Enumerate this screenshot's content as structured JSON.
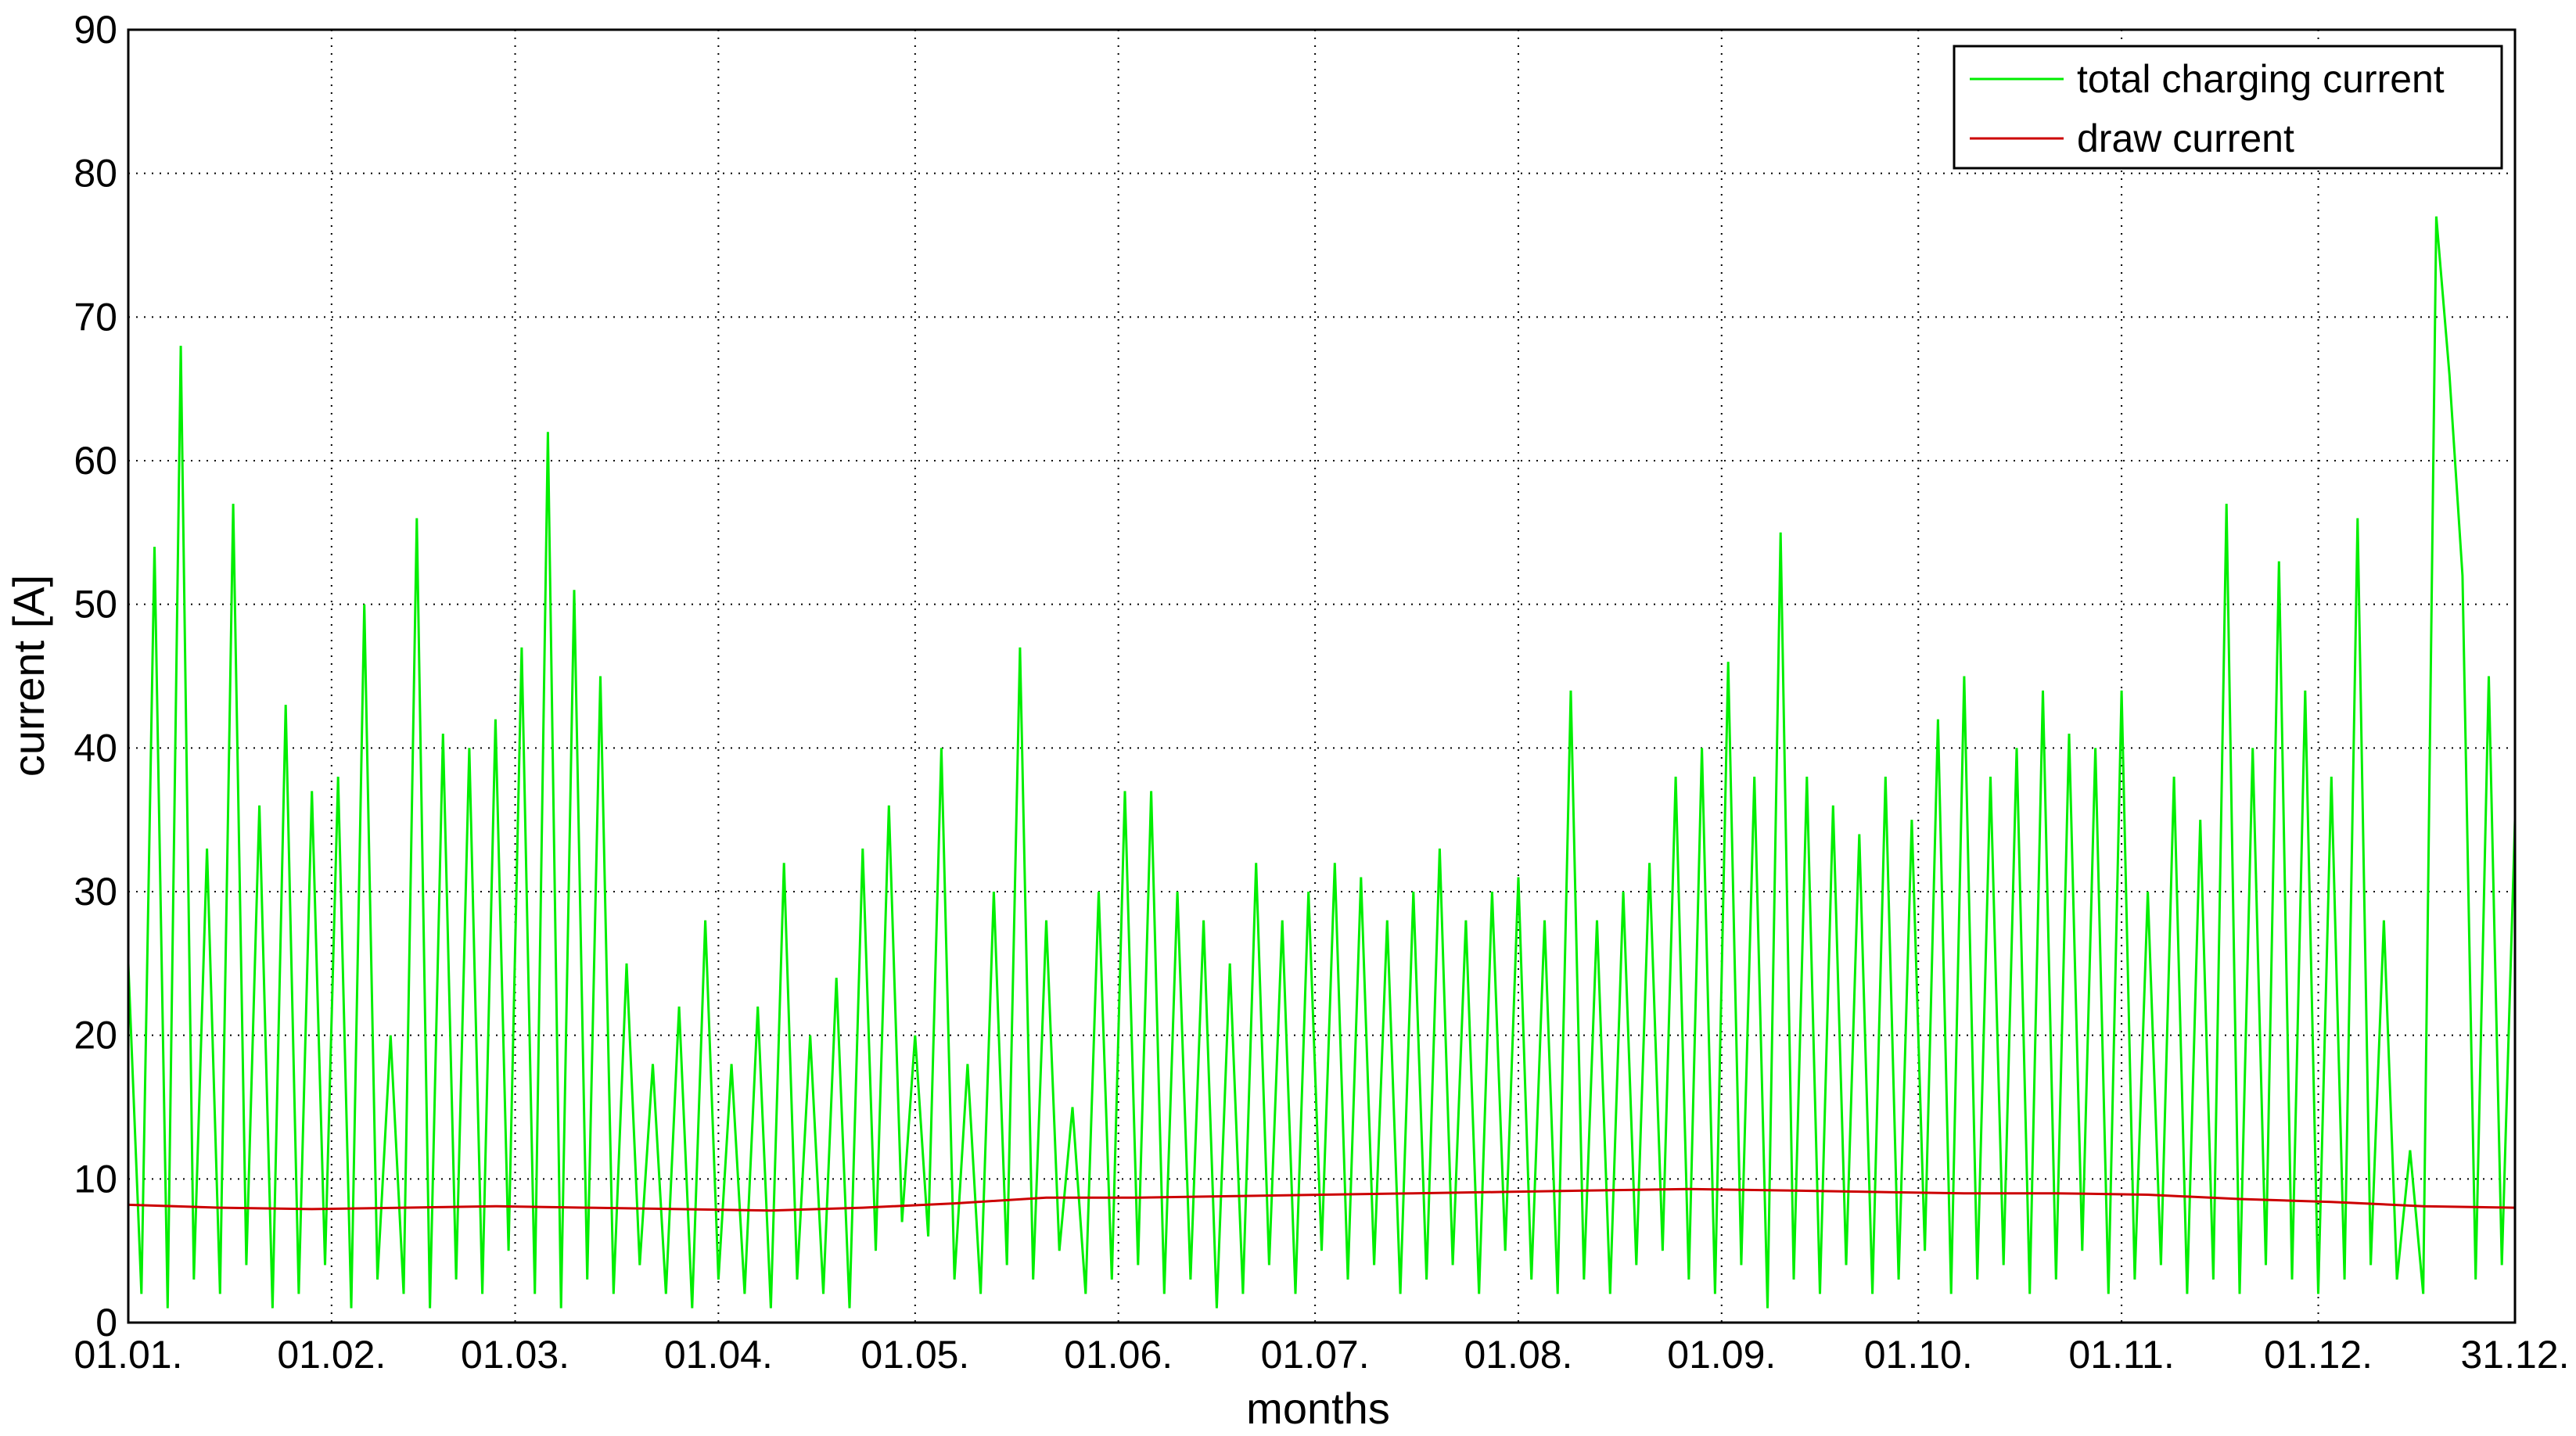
{
  "chart_data": {
    "type": "line",
    "xlabel": "months",
    "ylabel": "current [A]",
    "xlim": [
      0,
      364
    ],
    "xticks": [
      {
        "value": 0,
        "label": "01.01."
      },
      {
        "value": 31,
        "label": "01.02."
      },
      {
        "value": 59,
        "label": "01.03."
      },
      {
        "value": 90,
        "label": "01.04."
      },
      {
        "value": 120,
        "label": "01.05."
      },
      {
        "value": 151,
        "label": "01.06."
      },
      {
        "value": 181,
        "label": "01.07."
      },
      {
        "value": 212,
        "label": "01.08."
      },
      {
        "value": 243,
        "label": "01.09."
      },
      {
        "value": 273,
        "label": "01.10."
      },
      {
        "value": 304,
        "label": "01.11."
      },
      {
        "value": 334,
        "label": "01.12."
      },
      {
        "value": 364,
        "label": "31.12."
      }
    ],
    "ylim": [
      0,
      90
    ],
    "yticks": [
      0,
      10,
      20,
      30,
      40,
      50,
      60,
      70,
      80,
      90
    ],
    "grid": true,
    "legend": "upper right",
    "series": [
      {
        "name": "total charging current",
        "color": "#00ee00",
        "x": [
          0,
          2,
          4,
          6,
          8,
          10,
          12,
          14,
          16,
          18,
          20,
          22,
          24,
          26,
          28,
          30,
          32,
          34,
          36,
          38,
          40,
          42,
          44,
          46,
          48,
          50,
          52,
          54,
          56,
          58,
          60,
          62,
          64,
          66,
          68,
          70,
          72,
          74,
          76,
          78,
          80,
          82,
          84,
          86,
          88,
          90,
          92,
          94,
          96,
          98,
          100,
          102,
          104,
          106,
          108,
          110,
          112,
          114,
          116,
          118,
          120,
          122,
          124,
          126,
          128,
          130,
          132,
          134,
          136,
          138,
          140,
          142,
          144,
          146,
          148,
          150,
          152,
          154,
          156,
          158,
          160,
          162,
          164,
          166,
          168,
          170,
          172,
          174,
          176,
          178,
          180,
          182,
          184,
          186,
          188,
          190,
          192,
          194,
          196,
          198,
          200,
          202,
          204,
          206,
          208,
          210,
          212,
          214,
          216,
          218,
          220,
          222,
          224,
          226,
          228,
          230,
          232,
          234,
          236,
          238,
          240,
          242,
          244,
          246,
          248,
          250,
          252,
          254,
          256,
          258,
          260,
          262,
          264,
          266,
          268,
          270,
          272,
          274,
          276,
          278,
          280,
          282,
          284,
          286,
          288,
          290,
          292,
          294,
          296,
          298,
          300,
          302,
          304,
          306,
          308,
          310,
          312,
          314,
          316,
          318,
          320,
          322,
          324,
          326,
          328,
          330,
          332,
          334,
          336,
          338,
          340,
          342,
          344,
          346,
          348,
          350,
          352,
          354,
          356,
          358,
          360,
          362,
          364
        ],
        "values": [
          25,
          2,
          54,
          1,
          68,
          3,
          33,
          2,
          57,
          4,
          36,
          1,
          43,
          2,
          37,
          4,
          38,
          1,
          50,
          3,
          20,
          2,
          56,
          1,
          41,
          3,
          40,
          2,
          42,
          5,
          47,
          2,
          62,
          1,
          51,
          3,
          45,
          2,
          25,
          4,
          18,
          2,
          22,
          1,
          28,
          3,
          18,
          2,
          22,
          1,
          32,
          3,
          20,
          2,
          24,
          1,
          33,
          5,
          36,
          7,
          20,
          6,
          40,
          3,
          18,
          2,
          30,
          4,
          47,
          3,
          28,
          5,
          15,
          2,
          30,
          3,
          37,
          4,
          37,
          2,
          30,
          3,
          28,
          1,
          25,
          2,
          32,
          4,
          28,
          2,
          30,
          5,
          32,
          3,
          31,
          4,
          28,
          2,
          30,
          3,
          33,
          4,
          28,
          2,
          30,
          5,
          31,
          3,
          28,
          2,
          44,
          3,
          28,
          2,
          30,
          4,
          32,
          5,
          38,
          3,
          40,
          2,
          46,
          4,
          38,
          1,
          55,
          3,
          38,
          2,
          36,
          4,
          34,
          2,
          38,
          3,
          35,
          5,
          42,
          2,
          45,
          3,
          38,
          4,
          40,
          2,
          44,
          3,
          41,
          5,
          40,
          2,
          44,
          3,
          30,
          4,
          38,
          2,
          35,
          3,
          57,
          2,
          40,
          4,
          53,
          3,
          44,
          2,
          38,
          3,
          56,
          4,
          28,
          3,
          12,
          2,
          77,
          66,
          52,
          3,
          45,
          4,
          35
        ]
      },
      {
        "name": "draw current",
        "color": "#cc0000",
        "x": [
          0,
          14,
          28,
          42,
          56,
          70,
          84,
          98,
          112,
          126,
          140,
          154,
          168,
          182,
          196,
          210,
          224,
          238,
          252,
          266,
          280,
          294,
          308,
          322,
          336,
          350,
          364
        ],
        "values": [
          8.2,
          8.0,
          7.9,
          8.0,
          8.1,
          8.0,
          7.9,
          7.8,
          8.0,
          8.3,
          8.7,
          8.7,
          8.8,
          8.9,
          9.0,
          9.1,
          9.2,
          9.3,
          9.2,
          9.1,
          9.0,
          9.0,
          8.9,
          8.6,
          8.4,
          8.1,
          8.0
        ]
      }
    ]
  }
}
